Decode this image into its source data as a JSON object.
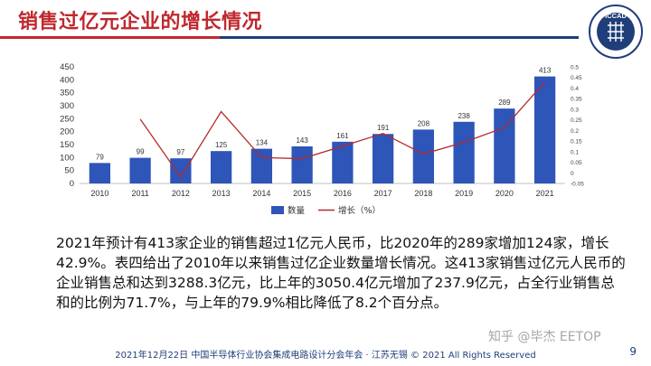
{
  "slide": {
    "title": "销售过亿元企业的增长情况",
    "body": [
      "2021年预计有413家企业的销售超过1亿元人民币，比2020年的289家增加124家，增长42.9%。表四给出了2010年以来销售过亿企业数量增长情况。这413家销售过亿元人民币的企业销售总和达到3288.3亿元，比上年的3050.4亿元增加了237.9亿元，占全行业销售总和的比例为71.7%，与上年的79.9%相比降低了8.2个百分点。"
    ],
    "footer": "2021年12月22日 中国半导体行业协会集成电路设计分会年会 · 江苏无锡 © 2021 All Rights Reserved",
    "page_number": "9",
    "watermark": "知乎 @毕杰 EETOP",
    "logo_text": "ICCAD",
    "colors": {
      "title": "#c0282e",
      "bar": "#2e55b8",
      "line": "#b42b2b",
      "accent": "#1f3e7a"
    }
  },
  "chart_data": {
    "type": "bar",
    "categories": [
      "2010",
      "2011",
      "2012",
      "2013",
      "2014",
      "2015",
      "2016",
      "2017",
      "2018",
      "2019",
      "2020",
      "2021"
    ],
    "series": [
      {
        "name": "数量",
        "type": "bar",
        "axis": "left",
        "values": [
          79,
          99,
          97,
          125,
          134,
          143,
          161,
          191,
          208,
          238,
          289,
          413
        ]
      },
      {
        "name": "增长（%）",
        "type": "line",
        "axis": "right",
        "values": [
          null,
          0.253,
          -0.02,
          0.289,
          0.072,
          0.067,
          0.126,
          0.186,
          0.089,
          0.144,
          0.214,
          0.429
        ]
      }
    ],
    "y_left": {
      "min": 0,
      "max": 450,
      "ticks": [
        0,
        50,
        100,
        150,
        200,
        250,
        300,
        350,
        400,
        450
      ]
    },
    "y_right": {
      "min": -0.05,
      "max": 0.5,
      "ticks": [
        "-0.05",
        "0",
        "0.05",
        "0.1",
        "0.15",
        "0.2",
        "0.25",
        "0.3",
        "0.35",
        "0.4",
        "0.45",
        "0.5"
      ]
    },
    "legend": {
      "position": "bottom",
      "entries": [
        "数量",
        "增长（%）"
      ]
    },
    "grid": false
  }
}
